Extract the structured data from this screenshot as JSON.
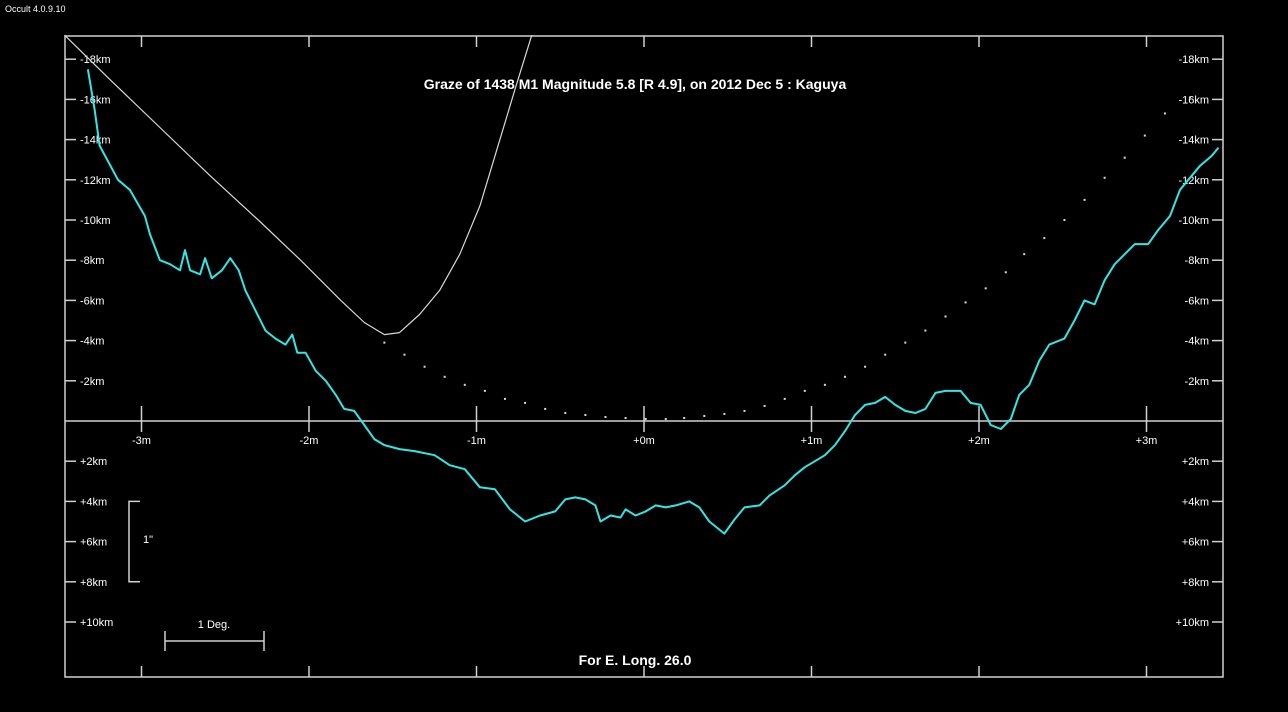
{
  "app_title": "Occult 4.0.9.10",
  "chart_data": {
    "type": "line",
    "title": "Graze of  1438 M1   Magnitude 5.8 [R 4.9],  on 2012 Dec  5  :  Kaguya",
    "footer": "For E. Long. 26.0",
    "xlabel": "minutes",
    "ylabel": "km",
    "xlim": [
      -3.46,
      3.46
    ],
    "ylim": [
      -19.2,
      12.8
    ],
    "x_ticks": [
      -3,
      -2,
      -1,
      0,
      1,
      2,
      3
    ],
    "x_tick_labels": [
      "-3m",
      "-2m",
      "-1m",
      "+0m",
      "+1m",
      "+2m",
      "+3m"
    ],
    "y_ticks": [
      -18,
      -16,
      -14,
      -12,
      -10,
      -8,
      -6,
      -4,
      -2,
      2,
      4,
      6,
      8,
      10
    ],
    "y_tick_labels": [
      "-18km",
      "-16km",
      "-14km",
      "-12km",
      "-10km",
      "-8km",
      "-6km",
      "-4km",
      "-2km",
      "+2km",
      "+4km",
      "+6km",
      "+8km",
      "+10km"
    ],
    "scale_arcsec_label": "1\"",
    "scale_arcsec_km": [
      4,
      8
    ],
    "scale_deg_label": "1 Deg.",
    "colors": {
      "profile": "#33e6e6",
      "limb": "#d8d8d8",
      "axes": "#d0d0d0",
      "background": "#000000"
    },
    "series": [
      {
        "name": "lunar limb profile",
        "style": "line",
        "x": [
          -3.32,
          -3.28,
          -3.25,
          -3.14,
          -3.07,
          -2.98,
          -2.95,
          -2.89,
          -2.83,
          -2.77,
          -2.74,
          -2.71,
          -2.65,
          -2.62,
          -2.58,
          -2.52,
          -2.47,
          -2.42,
          -2.38,
          -2.32,
          -2.26,
          -2.2,
          -2.14,
          -2.1,
          -2.07,
          -2.02,
          -1.96,
          -1.9,
          -1.84,
          -1.79,
          -1.73,
          -1.67,
          -1.61,
          -1.55,
          -1.46,
          -1.37,
          -1.25,
          -1.16,
          -1.07,
          -0.98,
          -0.89,
          -0.8,
          -0.71,
          -0.62,
          -0.53,
          -0.47,
          -0.41,
          -0.35,
          -0.29,
          -0.26,
          -0.2,
          -0.14,
          -0.11,
          -0.05,
          0.01,
          0.07,
          0.13,
          0.19,
          0.27,
          0.33,
          0.39,
          0.48,
          0.54,
          0.6,
          0.69,
          0.75,
          0.84,
          0.9,
          0.96,
          1.02,
          1.08,
          1.14,
          1.2,
          1.26,
          1.32,
          1.38,
          1.44,
          1.5,
          1.56,
          1.62,
          1.68,
          1.74,
          1.8,
          1.89,
          1.95,
          2.01,
          2.07,
          2.13,
          2.19,
          2.24,
          2.3,
          2.36,
          2.42,
          2.51,
          2.57,
          2.63,
          2.69,
          2.75,
          2.81,
          2.87,
          2.93,
          3.01,
          3.07,
          3.14,
          3.2,
          3.26,
          3.32,
          3.39,
          3.43
        ],
        "y": [
          -17.5,
          -15.5,
          -13.7,
          -12.0,
          -11.5,
          -10.2,
          -9.3,
          -8.0,
          -7.8,
          -7.5,
          -8.5,
          -7.5,
          -7.3,
          -8.1,
          -7.1,
          -7.5,
          -8.1,
          -7.5,
          -6.5,
          -5.5,
          -4.5,
          -4.1,
          -3.8,
          -4.3,
          -3.4,
          -3.4,
          -2.5,
          -2.0,
          -1.3,
          -0.6,
          -0.5,
          0.2,
          0.9,
          1.2,
          1.4,
          1.5,
          1.7,
          2.2,
          2.4,
          3.3,
          3.4,
          4.4,
          5.0,
          4.7,
          4.5,
          3.9,
          3.8,
          3.9,
          4.2,
          5.0,
          4.7,
          4.8,
          4.4,
          4.7,
          4.5,
          4.2,
          4.3,
          4.2,
          4.0,
          4.3,
          5.0,
          5.6,
          4.9,
          4.3,
          4.2,
          3.7,
          3.2,
          2.7,
          2.3,
          2.0,
          1.7,
          1.2,
          0.5,
          -0.3,
          -0.8,
          -0.9,
          -1.2,
          -0.8,
          -0.5,
          -0.4,
          -0.6,
          -1.4,
          -1.5,
          -1.5,
          -0.9,
          -0.8,
          0.2,
          0.4,
          -0.1,
          -1.3,
          -1.8,
          -3.0,
          -3.8,
          -4.1,
          -5.0,
          -6.0,
          -5.8,
          -7.0,
          -7.8,
          -8.3,
          -8.8,
          -8.8,
          -9.5,
          -10.2,
          -11.5,
          -12.1,
          -12.7,
          -13.2,
          -13.6
        ]
      },
      {
        "name": "limit curve",
        "style": "line",
        "x": [
          -3.46,
          -3.19,
          -2.89,
          -2.59,
          -2.29,
          -2.05,
          -1.81,
          -1.67,
          -1.55,
          -1.46,
          -1.34,
          -1.22,
          -1.1,
          -0.98,
          -0.86,
          -0.77,
          -0.67
        ],
        "y": [
          -19.2,
          -17.0,
          -14.6,
          -12.2,
          -9.9,
          -8.0,
          -6.0,
          -4.9,
          -4.3,
          -4.4,
          -5.3,
          -6.5,
          -8.3,
          -10.7,
          -14.0,
          -16.5,
          -19.2
        ]
      },
      {
        "name": "mean limb",
        "style": "dots",
        "x": [
          -1.55,
          -1.43,
          -1.31,
          -1.19,
          -1.07,
          -0.95,
          -0.83,
          -0.71,
          -0.59,
          -0.47,
          -0.35,
          -0.23,
          -0.11,
          0.01,
          0.13,
          0.24,
          0.36,
          0.48,
          0.6,
          0.72,
          0.84,
          0.96,
          1.08,
          1.2,
          1.32,
          1.44,
          1.56,
          1.68,
          1.8,
          1.92,
          2.04,
          2.16,
          2.27,
          2.39,
          2.51,
          2.63,
          2.75,
          2.87,
          2.99,
          3.11,
          3.26
        ],
        "y": [
          -3.9,
          -3.3,
          -2.7,
          -2.2,
          -1.8,
          -1.5,
          -1.1,
          -0.9,
          -0.6,
          -0.4,
          -0.3,
          -0.2,
          -0.15,
          -0.1,
          -0.1,
          -0.15,
          -0.25,
          -0.35,
          -0.5,
          -0.75,
          -1.1,
          -1.5,
          -1.8,
          -2.2,
          -2.7,
          -3.3,
          -3.9,
          -4.5,
          -5.2,
          -5.9,
          -6.6,
          -7.4,
          -8.3,
          -9.1,
          -10.0,
          -11.0,
          -12.1,
          -13.1,
          -14.2,
          -15.3,
          -16.1
        ]
      }
    ]
  }
}
